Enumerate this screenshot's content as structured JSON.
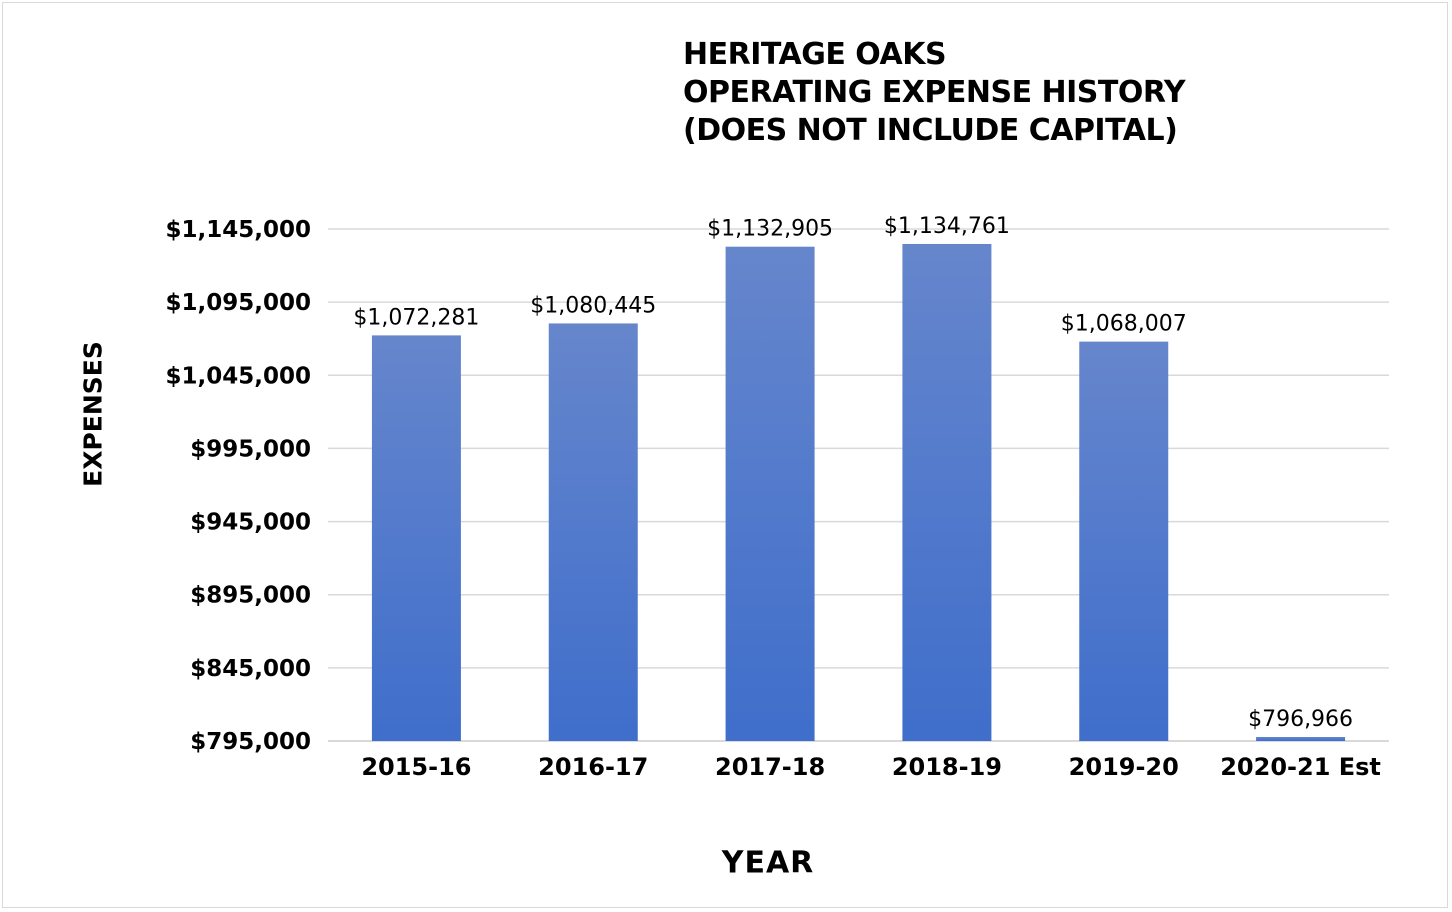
{
  "chart_data": {
    "type": "bar",
    "title_lines": [
      "HERITAGE OAKS",
      "OPERATING EXPENSE HISTORY",
      "(DOES NOT INCLUDE CAPITAL)"
    ],
    "xlabel": "YEAR",
    "ylabel": "EXPENSES",
    "categories": [
      "2015-16",
      "2016-17",
      "2017-18",
      "2018-19",
      "2019-20",
      "2020-21 Est"
    ],
    "values": [
      1072281,
      1080445,
      1132905,
      1134761,
      1068007,
      796966
    ],
    "data_labels": [
      "$1,072,281",
      "$1,080,445",
      "$1,132,905",
      "$1,134,761",
      "$1,068,007",
      "$796,966"
    ],
    "y_ticks": [
      795000,
      845000,
      895000,
      945000,
      995000,
      1045000,
      1095000,
      1145000
    ],
    "y_tick_labels": [
      "$795,000",
      "$845,000",
      "$895,000",
      "$945,000",
      "$995,000",
      "$1,045,000",
      "$1,095,000",
      "$1,145,000"
    ],
    "ylim": [
      795000,
      1145000
    ],
    "grid": true,
    "legend": "none",
    "colors": {
      "bar_top": "#6686cc",
      "bar_bottom": "#3f6ecb",
      "gridline": "#d9d9d9",
      "axis_line": "#d9d9d9"
    }
  }
}
